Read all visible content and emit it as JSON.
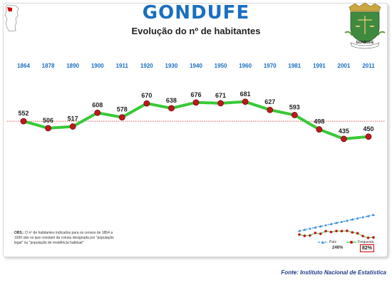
{
  "header": {
    "title": "GONDUFE",
    "subtitle": "Evolução do nº de habitantes",
    "crest_text": "GONDUFE"
  },
  "chart_data": {
    "type": "line",
    "title": "Evolução do nº de habitantes",
    "categories": [
      "1864",
      "1878",
      "1890",
      "1900",
      "1911",
      "1920",
      "1930",
      "1940",
      "1950",
      "1960",
      "1970",
      "1981",
      "1991",
      "2001",
      "2011"
    ],
    "series": [
      {
        "values": [
          552,
          506,
          517,
          608,
          578,
          670,
          638,
          676,
          671,
          681,
          627,
          593,
          498,
          435,
          450
        ]
      }
    ],
    "reference_line": 552,
    "ylim": [
      400,
      720
    ],
    "grid": false,
    "legend": "none"
  },
  "inset": {
    "legend_pais": "País",
    "legend_freguesia": "Freguesia",
    "pais_pct": "246%",
    "freguesia_pct": "82%",
    "colors": {
      "pais": "#3a8fd8",
      "freguesia": "#c0181f"
    }
  },
  "note": {
    "label": "OBS.:",
    "text": "O nº de habitantes indicados para os censos de 1864 a 1930 são os que constam da coluna designada por \"população legal\" ou \"população de residência habitual\""
  },
  "source": "Fonte: Instituto Nacional de Estatística",
  "colors": {
    "title": "#1a6fc0",
    "line": "#37c937",
    "point": "#c0181f",
    "year": "#1a6fc0",
    "reference": "#e01b1b"
  }
}
